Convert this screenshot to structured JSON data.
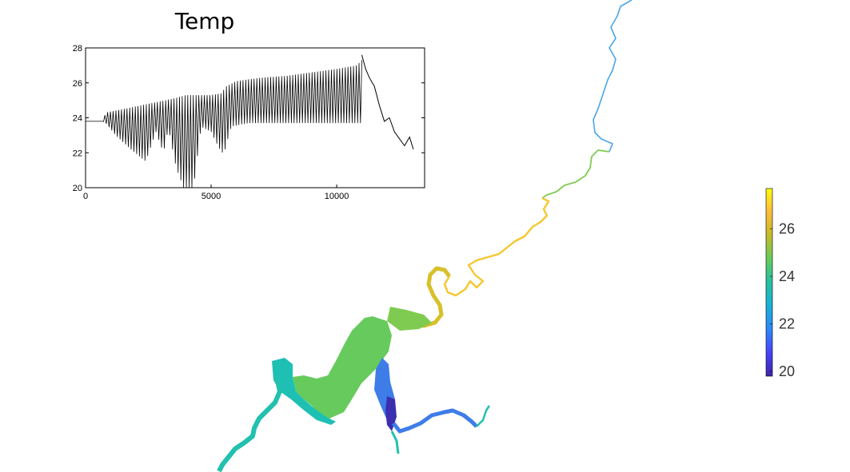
{
  "chart_data": [
    {
      "type": "line",
      "title": "Temp",
      "xlabel": "",
      "ylabel": "",
      "xlim": [
        0,
        13500
      ],
      "ylim": [
        20,
        28
      ],
      "x_ticks": [
        0,
        5000,
        10000
      ],
      "y_ticks": [
        20,
        22,
        24,
        26,
        28
      ],
      "line_color": "#000000",
      "series": [
        {
          "envelope_upper": {
            "x": [
              0,
              700,
              800,
              1500,
              2500,
              3500,
              4000,
              4500,
              5000,
              5400,
              5600,
              6000,
              7000,
              8000,
              9000,
              10000,
              10800,
              11000
            ],
            "y": [
              23.8,
              23.8,
              24.3,
              24.5,
              24.8,
              25.1,
              25.3,
              25.3,
              25.3,
              25.4,
              25.8,
              26.1,
              26.3,
              26.4,
              26.6,
              26.8,
              27.0,
              27.3
            ]
          },
          "envelope_lower": {
            "x": [
              0,
              700,
              800,
              1200,
              1800,
              2400,
              2800,
              3100,
              3300,
              3600,
              3900,
              4100,
              4300,
              4600,
              5000,
              5300,
              5500,
              5800,
              6500,
              8000,
              10000,
              11000
            ],
            "y": [
              23.8,
              23.8,
              23.7,
              23.0,
              22.2,
              21.5,
              23.2,
              22.0,
              23.4,
              21.2,
              20.0,
              19.2,
              20.0,
              23.5,
              23.2,
              22.3,
              21.9,
              23.5,
              23.7,
              23.7,
              23.7,
              23.7
            ]
          },
          "smooth_segment": {
            "x": [
              11000,
              11150,
              11300,
              11500,
              11700,
              11900,
              12100,
              12300,
              12500,
              12700,
              12900,
              13050
            ],
            "y": [
              27.6,
              26.8,
              26.3,
              25.8,
              24.7,
              23.8,
              24.0,
              23.2,
              22.8,
              22.4,
              22.9,
              22.2
            ]
          }
        }
      ]
    },
    {
      "type": "heatmap",
      "colorbar": {
        "range": [
          19.8,
          27.7
        ],
        "ticks": [
          20,
          22,
          24,
          26
        ],
        "colormap": "parula",
        "colors": [
          "#3e26a8",
          "#4743f8",
          "#2e87f7",
          "#1ab2d5",
          "#26c0a0",
          "#66cb5c",
          "#c4bb2a",
          "#fdbc3c",
          "#f9fb0e"
        ]
      },
      "map_colors": {
        "upstream_thin": "#4aa6e6",
        "upper_middle": "#f6c72f",
        "bend": "#d8c02a",
        "main_body_north": "#7fcb52",
        "main_body_west": "#1ec0b4",
        "inlet_deep": "#3b2fb0",
        "east_arm": "#3e7de8",
        "southwest_channel": "#22c0ae"
      }
    }
  ]
}
